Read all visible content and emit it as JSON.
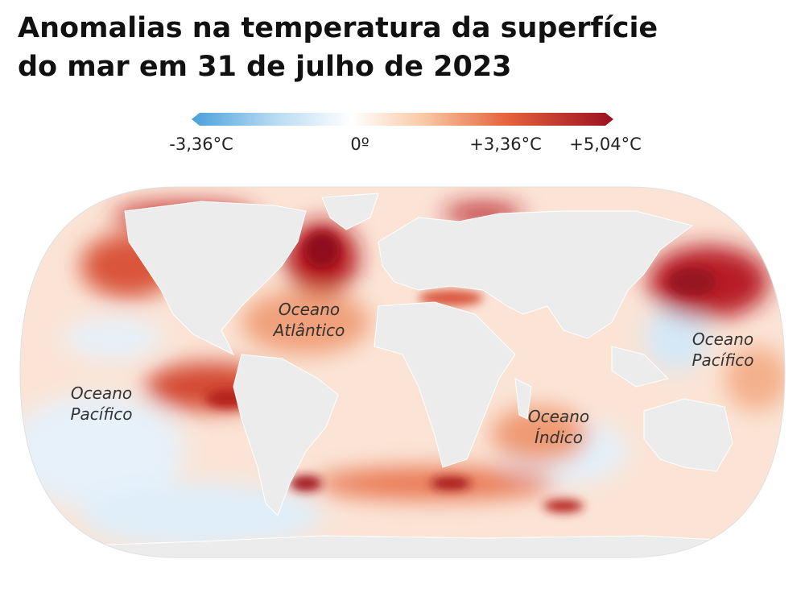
{
  "header": {
    "title_lines": [
      "Anomalias na temperatura da superfície",
      "do mar em 31 de julho de 2023"
    ]
  },
  "legend": {
    "labels": [
      "-3,36°C",
      "0º",
      "+3,36°C",
      "+5,04°C"
    ]
  },
  "map": {
    "ocean_labels": [
      {
        "lines": [
          "Oceano",
          "Atlântico"
        ]
      },
      {
        "lines": [
          "Oceano",
          "Pacífico"
        ]
      },
      {
        "lines": [
          "Oceano",
          "Índico"
        ]
      },
      {
        "lines": [
          "Oceano",
          "Pacífico"
        ]
      }
    ]
  }
}
